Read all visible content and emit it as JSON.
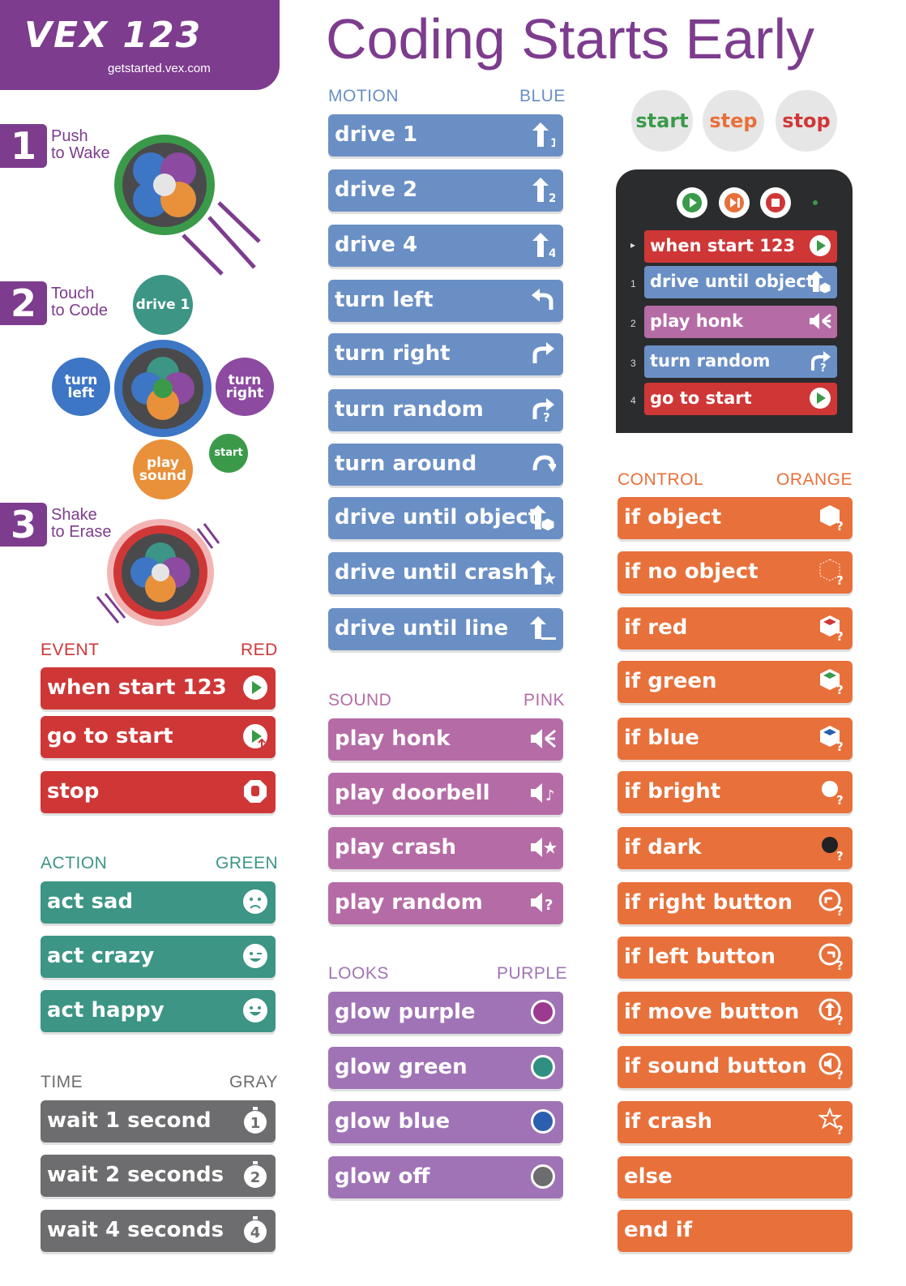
{
  "header": {
    "logo": "VEX 123",
    "url": "getstarted.vex.com",
    "title": "Coding Starts Early"
  },
  "steps": [
    {
      "num": "1",
      "line1": "Push",
      "line2": "to Wake"
    },
    {
      "num": "2",
      "line1": "Touch",
      "line2": "to Code"
    },
    {
      "num": "3",
      "line1": "Shake",
      "line2": "to Erase"
    }
  ],
  "touch_buttons": {
    "drive": "drive 1",
    "turn_left": "turn left",
    "turn_right": "turn right",
    "play_sound": "play sound",
    "start": "start"
  },
  "controls": {
    "start": "start",
    "step": "step",
    "stop": "stop"
  },
  "colors": {
    "motion": "#6a8fc5",
    "event": "#cf3737",
    "action": "#3c9585",
    "time": "#6d6d6f",
    "sound": "#b56ca6",
    "looks": "#a073b6",
    "control": "#e8703a",
    "brand": "#7d3c8e"
  },
  "categories": {
    "motion": {
      "name": "MOTION",
      "color": "BLUE"
    },
    "event": {
      "name": "EVENT",
      "color": "RED"
    },
    "action": {
      "name": "ACTION",
      "color": "GREEN"
    },
    "time": {
      "name": "TIME",
      "color": "GRAY"
    },
    "sound": {
      "name": "SOUND",
      "color": "PINK"
    },
    "looks": {
      "name": "LOOKS",
      "color": "PURPLE"
    },
    "control": {
      "name": "CONTROL",
      "color": "ORANGE"
    }
  },
  "blocks": {
    "motion": [
      {
        "label": "drive 1",
        "icon": "arrow-up-1-icon"
      },
      {
        "label": "drive 2",
        "icon": "arrow-up-2-icon"
      },
      {
        "label": "drive 4",
        "icon": "arrow-up-4-icon"
      },
      {
        "label": "turn left",
        "icon": "turn-left-icon"
      },
      {
        "label": "turn right",
        "icon": "turn-right-icon"
      },
      {
        "label": "turn random",
        "icon": "turn-random-icon"
      },
      {
        "label": "turn around",
        "icon": "turn-around-icon"
      },
      {
        "label": "drive until object",
        "icon": "drive-object-icon"
      },
      {
        "label": "drive until crash",
        "icon": "drive-crash-icon"
      },
      {
        "label": "drive until line",
        "icon": "drive-line-icon"
      }
    ],
    "event": [
      {
        "label": "when start 123",
        "icon": "play-icon"
      },
      {
        "label": "go to start",
        "icon": "go-start-icon"
      },
      {
        "label": "stop",
        "icon": "stop-hand-icon"
      }
    ],
    "action": [
      {
        "label": "act sad",
        "icon": "sad-face-icon"
      },
      {
        "label": "act crazy",
        "icon": "crazy-face-icon"
      },
      {
        "label": "act happy",
        "icon": "happy-face-icon"
      }
    ],
    "time": [
      {
        "label": "wait 1 second",
        "icon": "timer-1-icon",
        "n": "1"
      },
      {
        "label": "wait 2 seconds",
        "icon": "timer-2-icon",
        "n": "2"
      },
      {
        "label": "wait 4 seconds",
        "icon": "timer-4-icon",
        "n": "4"
      }
    ],
    "sound": [
      {
        "label": "play honk",
        "icon": "speaker-honk-icon"
      },
      {
        "label": "play doorbell",
        "icon": "speaker-doorbell-icon"
      },
      {
        "label": "play crash",
        "icon": "speaker-crash-icon"
      },
      {
        "label": "play random",
        "icon": "speaker-random-icon"
      }
    ],
    "looks": [
      {
        "label": "glow purple",
        "icon": "glow-purple-icon"
      },
      {
        "label": "glow green",
        "icon": "glow-green-icon"
      },
      {
        "label": "glow blue",
        "icon": "glow-blue-icon"
      },
      {
        "label": "glow off",
        "icon": "glow-off-icon"
      }
    ],
    "control": [
      {
        "label": "if object",
        "icon": "cube-question-icon"
      },
      {
        "label": "if no object",
        "icon": "empty-cube-question-icon"
      },
      {
        "label": "if red",
        "icon": "red-cube-icon"
      },
      {
        "label": "if green",
        "icon": "green-cube-icon"
      },
      {
        "label": "if blue",
        "icon": "blue-cube-icon"
      },
      {
        "label": "if bright",
        "icon": "sun-question-icon"
      },
      {
        "label": "if dark",
        "icon": "dark-question-icon"
      },
      {
        "label": "if right button",
        "icon": "right-button-icon"
      },
      {
        "label": "if left button",
        "icon": "left-button-icon"
      },
      {
        "label": "if move button",
        "icon": "move-button-icon"
      },
      {
        "label": "if sound button",
        "icon": "sound-button-icon"
      },
      {
        "label": "if crash",
        "icon": "crash-question-icon"
      },
      {
        "label": "else",
        "icon": ""
      },
      {
        "label": "end if",
        "icon": ""
      }
    ]
  },
  "tablet": {
    "blocks": [
      {
        "num": "",
        "label": "when start 123",
        "color": "#cf3737"
      },
      {
        "num": "1",
        "label": "drive until object",
        "color": "#6a8fc5"
      },
      {
        "num": "2",
        "label": "play honk",
        "color": "#b56ca6"
      },
      {
        "num": "3",
        "label": "turn random",
        "color": "#6a8fc5"
      },
      {
        "num": "4",
        "label": "go to start",
        "color": "#cf3737"
      }
    ]
  }
}
